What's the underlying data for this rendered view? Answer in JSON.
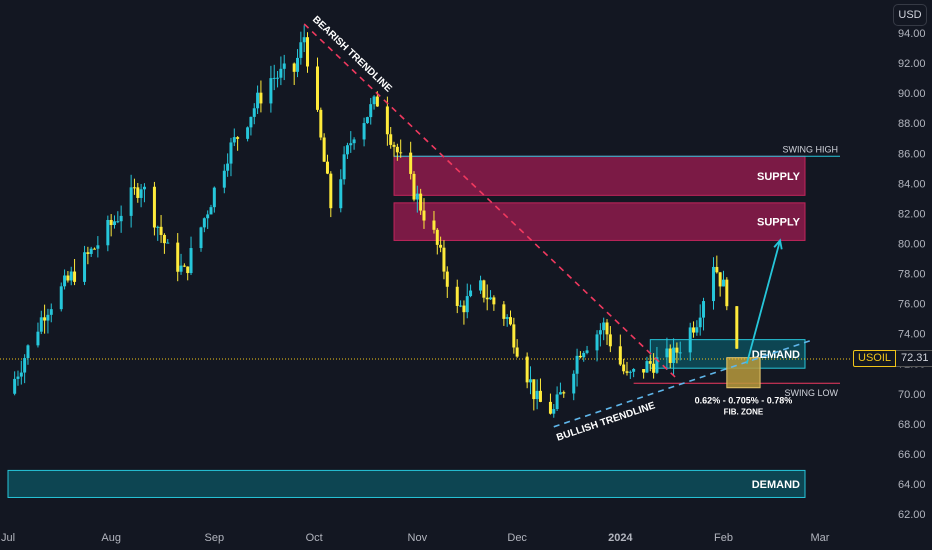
{
  "currency_button": "USD",
  "symbol": "USOIL",
  "last_price": "72.31",
  "colors": {
    "background": "#131722",
    "bull": "#26c6da",
    "bear": "#ffeb3b",
    "supply": "#8e1b4b",
    "demand": "#0c5a66",
    "trend_bear": "#f0395f",
    "trend_bull": "#5fb6ea",
    "fib": "#b89a3c"
  },
  "chart_data": {
    "type": "candlestick",
    "y_axis": {
      "range": [
        61,
        95.2
      ],
      "ticks": [
        "94.00",
        "92.00",
        "90.00",
        "88.00",
        "86.00",
        "84.00",
        "82.00",
        "80.00",
        "78.00",
        "76.00",
        "74.00",
        "72.00",
        "70.00",
        "68.00",
        "66.00",
        "64.00",
        "62.00"
      ]
    },
    "x_axis": {
      "range": [
        "2023-07-01",
        "2024-03-01"
      ],
      "ticks": [
        {
          "label": "Jul",
          "date": "2023-07-01",
          "bold": false
        },
        {
          "label": "Aug",
          "date": "2023-08-01",
          "bold": false
        },
        {
          "label": "Sep",
          "date": "2023-09-01",
          "bold": false
        },
        {
          "label": "Oct",
          "date": "2023-10-01",
          "bold": false
        },
        {
          "label": "Nov",
          "date": "2023-11-01",
          "bold": false
        },
        {
          "label": "Dec",
          "date": "2023-12-01",
          "bold": false
        },
        {
          "label": "2024",
          "date": "2024-01-01",
          "bold": true
        },
        {
          "label": "Feb",
          "date": "2024-02-01",
          "bold": false
        },
        {
          "label": "Mar",
          "date": "2024-03-01",
          "bold": false
        }
      ]
    },
    "anchors": [
      [
        "2023-07-01",
        70.0
      ],
      [
        "2023-07-12",
        75.5
      ],
      [
        "2023-07-28",
        80.0
      ],
      [
        "2023-08-10",
        84.0
      ],
      [
        "2023-08-18",
        79.5
      ],
      [
        "2023-08-23",
        78.0
      ],
      [
        "2023-09-05",
        86.0
      ],
      [
        "2023-09-18",
        91.0
      ],
      [
        "2023-09-25",
        91.5
      ],
      [
        "2023-09-28",
        93.8
      ],
      [
        "2023-10-05",
        84.0
      ],
      [
        "2023-10-06",
        82.5
      ],
      [
        "2023-10-13",
        87.5
      ],
      [
        "2023-10-20",
        89.5
      ],
      [
        "2023-10-27",
        85.5
      ],
      [
        "2023-11-06",
        80.5
      ],
      [
        "2023-11-13",
        75.5
      ],
      [
        "2023-11-20",
        77.0
      ],
      [
        "2023-11-28",
        75.0
      ],
      [
        "2023-12-07",
        69.5
      ],
      [
        "2023-12-12",
        68.8
      ],
      [
        "2023-12-20",
        73.0
      ],
      [
        "2023-12-27",
        74.5
      ],
      [
        "2024-01-03",
        71.0
      ],
      [
        "2024-01-10",
        72.0
      ],
      [
        "2024-01-17",
        72.5
      ],
      [
        "2024-01-24",
        75.0
      ],
      [
        "2024-01-29",
        78.8
      ],
      [
        "2024-02-02",
        76.5
      ],
      [
        "2024-02-05",
        72.3
      ]
    ],
    "zones": [
      {
        "label": "SUPPLY",
        "kind": "supply",
        "y_top": 85.8,
        "y_bottom": 83.2,
        "x_start": "2023-10-25"
      },
      {
        "label": "SUPPLY",
        "kind": "supply",
        "y_top": 82.7,
        "y_bottom": 80.2,
        "x_start": "2023-10-25"
      },
      {
        "label": "DEMAND",
        "kind": "demand",
        "y_top": 73.6,
        "y_bottom": 71.7,
        "x_start": "2024-01-10"
      },
      {
        "label": "DEMAND",
        "kind": "demand",
        "y_top": 64.9,
        "y_bottom": 63.1,
        "x_start": "2023-07-01"
      }
    ],
    "levels": [
      {
        "label": "SWING HIGH",
        "y": 85.8,
        "x_start": "2023-10-25"
      },
      {
        "label": "SWING LOW",
        "y": 70.7,
        "x_start": "2024-01-05"
      }
    ],
    "trendlines": [
      {
        "label": "BEARISH TRENDLINE",
        "kind": "bear",
        "from": [
          "2023-09-28",
          94.6
        ],
        "to": [
          "2024-01-18",
          71.0
        ]
      },
      {
        "label": "BULLISH TRENDLINE",
        "kind": "bull",
        "from": [
          "2023-12-12",
          67.8
        ],
        "to": [
          "2024-02-28",
          73.6
        ]
      }
    ],
    "fib_zone": {
      "label": "0.62% - 0.705% - 0.78%",
      "sublabel": "FIB. ZONE",
      "x_start": "2024-02-02",
      "x_end": "2024-02-12",
      "y_top": 72.4,
      "y_bottom": 70.4
    },
    "projection": {
      "from": [
        "2024-02-08",
        72.0
      ],
      "to": [
        "2024-02-18",
        80.2
      ]
    },
    "current_price": 72.31
  }
}
